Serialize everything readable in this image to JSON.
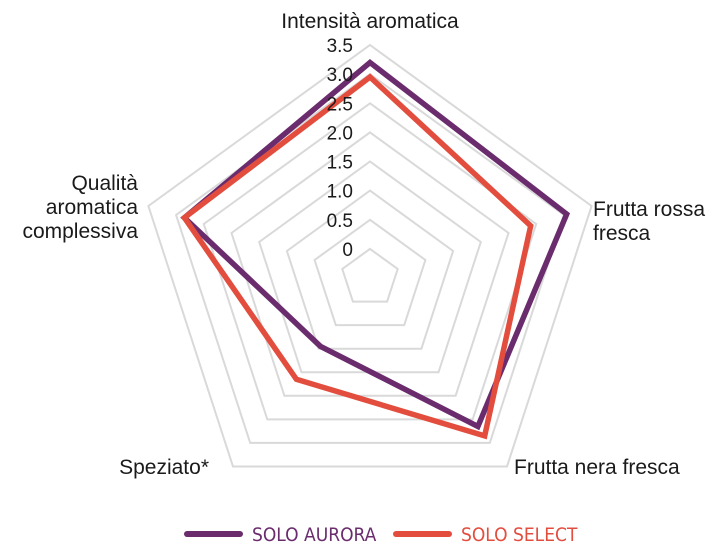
{
  "chart_data": {
    "type": "radar",
    "axes": [
      "Intensità aromatica",
      "Frutta rossa fresca",
      "Frutta nera fresca",
      "Speziato*",
      "Qualità aromatica complessiva"
    ],
    "axis_label_lines": [
      [
        "Intensità aromatica"
      ],
      [
        "Frutta rossa",
        "fresca"
      ],
      [
        "Frutta nera fresca"
      ],
      [
        "Speziato*"
      ],
      [
        "Qualità",
        "aromatica",
        "complessiva"
      ]
    ],
    "ticks": [
      0,
      0.5,
      1.0,
      1.5,
      2.0,
      2.5,
      3.0,
      3.5
    ],
    "tick_labels": [
      "0",
      "0.5",
      "1.0",
      "1.5",
      "2.0",
      "2.5",
      "3.0",
      "3.5"
    ],
    "range": [
      -0.5,
      3.5
    ],
    "grid": true,
    "legend_position": "bottom",
    "series": [
      {
        "name": "SOLO AURORA",
        "color": "#6b2c6e",
        "values": [
          3.2,
          3.05,
          2.65,
          0.95,
          2.85
        ]
      },
      {
        "name": "SOLO SELECT",
        "color": "#e34d3e",
        "values": [
          2.95,
          2.4,
          2.85,
          1.65,
          2.85
        ]
      }
    ]
  },
  "colors": {
    "grid": "#d9d9d9",
    "text": "#1a1a1a"
  }
}
